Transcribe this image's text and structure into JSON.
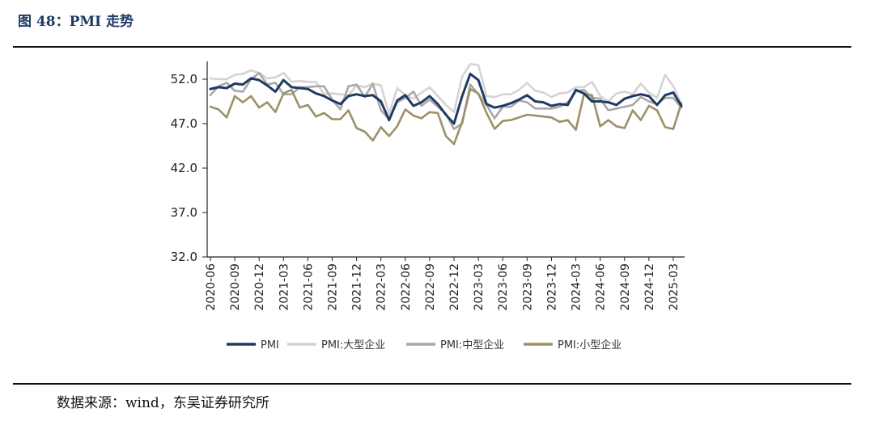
{
  "figure": {
    "title": "图 48：PMI 走势",
    "source": "数据来源：wind，东吴证券研究所"
  },
  "chart_data": {
    "type": "line",
    "ylim": [
      32.0,
      54.0
    ],
    "yticks": [
      "32.0",
      "37.0",
      "42.0",
      "47.0",
      "52.0"
    ],
    "x_tick_labels": [
      "2020-06",
      "2020-09",
      "2020-12",
      "2021-03",
      "2021-06",
      "2021-09",
      "2021-12",
      "2022-03",
      "2022-06",
      "2022-09",
      "2022-12",
      "2023-03",
      "2023-06",
      "2023-09",
      "2023-12",
      "2024-03",
      "2024-06",
      "2024-09",
      "2024-12",
      "2025-03"
    ],
    "x": [
      "2020-06",
      "2020-07",
      "2020-08",
      "2020-09",
      "2020-10",
      "2020-11",
      "2020-12",
      "2021-01",
      "2021-02",
      "2021-03",
      "2021-04",
      "2021-05",
      "2021-06",
      "2021-07",
      "2021-08",
      "2021-09",
      "2021-10",
      "2021-11",
      "2021-12",
      "2022-01",
      "2022-02",
      "2022-03",
      "2022-04",
      "2022-05",
      "2022-06",
      "2022-07",
      "2022-08",
      "2022-09",
      "2022-10",
      "2022-11",
      "2022-12",
      "2023-01",
      "2023-02",
      "2023-03",
      "2023-04",
      "2023-05",
      "2023-06",
      "2023-07",
      "2023-08",
      "2023-09",
      "2023-10",
      "2023-11",
      "2023-12",
      "2024-01",
      "2024-02",
      "2024-03",
      "2024-04",
      "2024-05",
      "2024-06",
      "2024-07",
      "2024-08",
      "2024-09",
      "2024-10",
      "2024-11",
      "2024-12",
      "2025-01",
      "2025-02",
      "2025-03",
      "2025-04"
    ],
    "grid": false,
    "legend_position": "bottom",
    "series": [
      {
        "name": "PMI",
        "color": "#1f3b63",
        "values": [
          50.9,
          51.1,
          51.0,
          51.5,
          51.4,
          52.1,
          51.9,
          51.3,
          50.6,
          51.9,
          51.1,
          51.0,
          50.9,
          50.4,
          50.1,
          49.6,
          49.2,
          50.1,
          50.3,
          50.1,
          50.2,
          49.5,
          47.4,
          49.6,
          50.2,
          49.0,
          49.4,
          50.1,
          49.2,
          48.0,
          47.0,
          50.1,
          52.6,
          51.9,
          49.2,
          48.8,
          49.0,
          49.3,
          49.7,
          50.2,
          49.5,
          49.4,
          49.0,
          49.2,
          49.1,
          50.8,
          50.4,
          49.5,
          49.5,
          49.4,
          49.1,
          49.8,
          50.1,
          50.3,
          50.1,
          49.1,
          50.2,
          50.5,
          49.0
        ]
      },
      {
        "name": "PMI:大型企业",
        "color": "#d4d4d4",
        "values": [
          52.1,
          52.0,
          52.0,
          52.5,
          52.6,
          53.0,
          52.7,
          52.1,
          52.2,
          52.7,
          51.7,
          51.8,
          51.7,
          51.7,
          50.3,
          50.4,
          50.3,
          50.2,
          51.3,
          51.1,
          51.5,
          51.3,
          48.1,
          51.0,
          50.2,
          49.8,
          50.5,
          51.1,
          50.1,
          49.1,
          48.3,
          52.3,
          53.7,
          53.6,
          50.1,
          50.0,
          50.3,
          50.3,
          50.8,
          51.6,
          50.7,
          50.5,
          50.0,
          50.4,
          50.5,
          51.1,
          51.1,
          51.7,
          50.1,
          49.5,
          50.4,
          50.6,
          50.3,
          51.5,
          50.5,
          49.9,
          52.5,
          51.2,
          49.2
        ]
      },
      {
        "name": "PMI:中型企业",
        "color": "#a8a8a8",
        "values": [
          50.2,
          51.2,
          51.6,
          50.7,
          50.6,
          52.0,
          52.7,
          51.4,
          51.6,
          50.3,
          50.3,
          51.1,
          51.1,
          51.2,
          51.2,
          49.7,
          48.6,
          51.2,
          51.4,
          50.0,
          51.5,
          48.5,
          47.5,
          49.4,
          49.9,
          50.6,
          49.0,
          49.7,
          48.9,
          48.1,
          46.4,
          47.0,
          51.4,
          50.3,
          49.1,
          47.6,
          48.9,
          48.9,
          49.6,
          49.4,
          48.7,
          48.7,
          48.7,
          48.9,
          49.4,
          50.6,
          50.8,
          49.9,
          49.8,
          48.5,
          48.7,
          48.9,
          49.1,
          50.0,
          49.5,
          49.2,
          49.9,
          49.9,
          48.8
        ]
      },
      {
        "name": "PMI:小型企业",
        "color": "#9c9166",
        "values": [
          48.9,
          48.6,
          47.7,
          50.1,
          49.4,
          50.1,
          48.8,
          49.4,
          48.3,
          50.4,
          50.8,
          48.8,
          49.1,
          47.8,
          48.2,
          47.5,
          47.5,
          48.5,
          46.5,
          46.1,
          45.1,
          46.6,
          45.6,
          46.7,
          48.6,
          47.9,
          47.6,
          48.3,
          48.2,
          45.6,
          44.7,
          47.2,
          50.9,
          50.4,
          48.2,
          46.4,
          47.3,
          47.4,
          47.7,
          48.0,
          47.9,
          47.8,
          47.7,
          47.2,
          47.4,
          46.3,
          50.3,
          50.2,
          46.7,
          47.4,
          46.7,
          46.5,
          48.5,
          47.4,
          49.0,
          48.5,
          46.6,
          46.4,
          49.3
        ]
      }
    ]
  }
}
